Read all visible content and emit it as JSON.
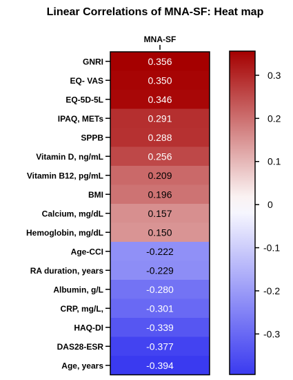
{
  "chart_data": {
    "type": "heatmap",
    "title": "Linear Correlations of MNA-SF: Heat map",
    "column_label": "MNA-SF",
    "rows": [
      {
        "label": "GNRI",
        "value": 0.356,
        "display": "0.356"
      },
      {
        "label": "EQ- VAS",
        "value": 0.35,
        "display": "0.350"
      },
      {
        "label": "EQ-5D-5L",
        "value": 0.346,
        "display": "0.346"
      },
      {
        "label": "IPAQ, METs",
        "value": 0.291,
        "display": "0.291"
      },
      {
        "label": "SPPB",
        "value": 0.288,
        "display": "0.288"
      },
      {
        "label": "Vitamin D, ng/mL",
        "value": 0.256,
        "display": "0.256"
      },
      {
        "label": "Vitamin B12, pg/mL",
        "value": 0.209,
        "display": "0.209"
      },
      {
        "label": "BMI",
        "value": 0.196,
        "display": "0.196"
      },
      {
        "label": "Calcium, mg/dL",
        "value": 0.157,
        "display": "0.157"
      },
      {
        "label": "Hemoglobin, mg/dL",
        "value": 0.15,
        "display": "0.150"
      },
      {
        "label": "Age-CCI",
        "value": -0.222,
        "display": "-0.222"
      },
      {
        "label": "RA duration, years",
        "value": -0.229,
        "display": "-0.229"
      },
      {
        "label": "Albumin, g/L",
        "value": -0.28,
        "display": "-0.280"
      },
      {
        "label": "CRP, mg/L,",
        "value": -0.301,
        "display": "-0.301"
      },
      {
        "label": "HAQ-DI",
        "value": -0.339,
        "display": "-0.339"
      },
      {
        "label": "DAS28-ESR",
        "value": -0.377,
        "display": "-0.377"
      },
      {
        "label": "Age, years",
        "value": -0.394,
        "display": "-0.394"
      }
    ],
    "colorbar": {
      "range": [
        -0.394,
        0.356
      ],
      "ticks": [
        {
          "value": 0.3,
          "label": "0.3"
        },
        {
          "value": 0.2,
          "label": "0.2"
        },
        {
          "value": 0.1,
          "label": "0.1"
        },
        {
          "value": 0,
          "label": "0"
        },
        {
          "value": -0.1,
          "label": "-0.1"
        },
        {
          "value": -0.2,
          "label": "-0.2"
        },
        {
          "value": -0.3,
          "label": "-0.3"
        }
      ],
      "low_color": "#3a3af0",
      "mid_color": "#ffffff",
      "high_color": "#a50000"
    }
  }
}
